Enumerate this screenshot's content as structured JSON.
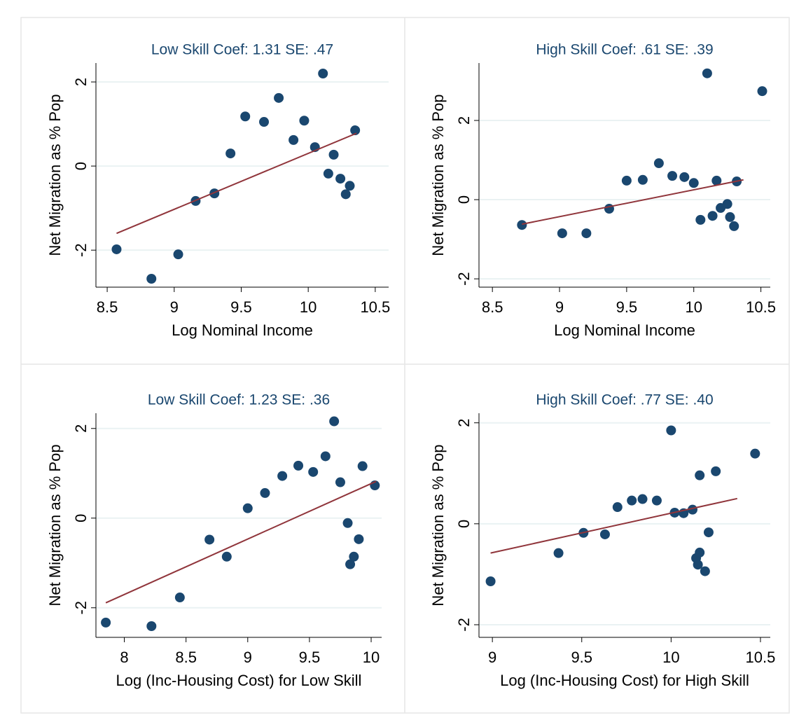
{
  "chart_data": [
    {
      "type": "scatter",
      "title": "Low Skill Coef: 1.31 SE: .47",
      "xlabel": "Log Nominal Income",
      "ylabel": "Net Migration as % Pop",
      "x": [
        8.57,
        8.83,
        9.03,
        9.16,
        9.3,
        9.42,
        9.53,
        9.67,
        9.78,
        9.89,
        9.97,
        10.05,
        10.11,
        10.15,
        10.19,
        10.24,
        10.28,
        10.31,
        10.35
      ],
      "values": [
        -1.98,
        -2.68,
        -2.1,
        -0.83,
        -0.65,
        0.3,
        1.18,
        1.05,
        1.62,
        0.62,
        1.08,
        0.45,
        2.2,
        -0.18,
        0.27,
        -0.3,
        -0.67,
        -0.47,
        0.85
      ],
      "fit_x": [
        8.57,
        10.36
      ],
      "fit_values": [
        -1.6,
        0.78
      ],
      "color": "#1a476f",
      "fit_color": "#90353b",
      "grid": true,
      "xlim": [
        8.416,
        10.6
      ],
      "xticks": [
        8.5,
        9,
        9.5,
        10,
        10.5
      ],
      "ylim": [
        -2.88,
        2.45
      ],
      "yticks": [
        -2,
        0,
        2
      ]
    },
    {
      "type": "scatter",
      "title": "High Skill Coef: .61 SE: .39",
      "xlabel": "Log Nominal Income",
      "ylabel": "Net Migration as % Pop",
      "x": [
        8.72,
        9.02,
        9.2,
        9.37,
        9.5,
        9.62,
        9.74,
        9.84,
        9.93,
        10.0,
        10.05,
        10.1,
        10.14,
        10.17,
        10.2,
        10.25,
        10.27,
        10.3,
        10.32,
        10.51
      ],
      "values": [
        -0.64,
        -0.85,
        -0.85,
        -0.23,
        0.48,
        0.5,
        0.92,
        0.6,
        0.57,
        0.42,
        -0.51,
        3.19,
        -0.41,
        0.48,
        -0.21,
        -0.11,
        -0.44,
        -0.67,
        0.46,
        2.74
      ],
      "fit_x": [
        8.72,
        10.37
      ],
      "fit_values": [
        -0.62,
        0.5
      ],
      "color": "#1a476f",
      "fit_color": "#90353b",
      "grid": true,
      "xlim": [
        8.4,
        10.57
      ],
      "xticks": [
        8.5,
        9,
        9.5,
        10,
        10.5
      ],
      "ylim": [
        -2.21,
        3.45
      ],
      "yticks": [
        -2,
        0,
        2
      ]
    },
    {
      "type": "scatter",
      "title": "Low Skill Coef: 1.23 SE: .36",
      "xlabel": "Log (Inc-Housing Cost) for Low Skill",
      "ylabel": "Net Migration as % Pop",
      "x": [
        7.85,
        8.22,
        8.45,
        8.69,
        8.83,
        9.0,
        9.14,
        9.28,
        9.41,
        9.53,
        9.63,
        9.7,
        9.75,
        9.81,
        9.83,
        9.86,
        9.9,
        9.93,
        10.03
      ],
      "values": [
        -2.33,
        -2.41,
        -1.77,
        -0.48,
        -0.86,
        0.22,
        0.56,
        0.94,
        1.17,
        1.03,
        1.38,
        2.16,
        0.8,
        -0.11,
        -1.03,
        -0.86,
        -0.47,
        1.16,
        0.73
      ],
      "fit_x": [
        7.85,
        10.04
      ],
      "fit_values": [
        -1.89,
        0.82
      ],
      "color": "#1a476f",
      "fit_color": "#90353b",
      "grid": true,
      "xlim": [
        7.77,
        10.085
      ],
      "xticks": [
        8,
        8.5,
        9,
        9.5,
        10
      ],
      "ylim": [
        -2.66,
        2.34
      ],
      "yticks": [
        -2,
        0,
        2
      ]
    },
    {
      "type": "scatter",
      "title": "High Skill Coef: .77 SE: .40",
      "xlabel": "Log (Inc-Housing Cost) for High Skill",
      "ylabel": "Net Migration as % Pop",
      "x": [
        8.99,
        9.37,
        9.51,
        9.63,
        9.7,
        9.78,
        9.84,
        9.92,
        10.0,
        10.02,
        10.07,
        10.12,
        10.14,
        10.15,
        10.16,
        10.16,
        10.19,
        10.21,
        10.25,
        10.47
      ],
      "values": [
        -1.14,
        -0.58,
        -0.18,
        -0.21,
        0.33,
        0.46,
        0.49,
        0.46,
        1.85,
        0.22,
        0.21,
        0.28,
        -0.68,
        -0.81,
        -0.57,
        0.96,
        -0.94,
        -0.17,
        1.04,
        1.39
      ],
      "fit_x": [
        8.99,
        10.37
      ],
      "fit_values": [
        -0.58,
        0.5
      ],
      "color": "#1a476f",
      "fit_color": "#90353b",
      "grid": true,
      "xlim": [
        8.925,
        10.555
      ],
      "xticks": [
        9,
        9.5,
        10,
        10.5
      ],
      "ylim": [
        -2.25,
        2.19
      ],
      "yticks": [
        -2,
        0,
        2
      ]
    }
  ]
}
